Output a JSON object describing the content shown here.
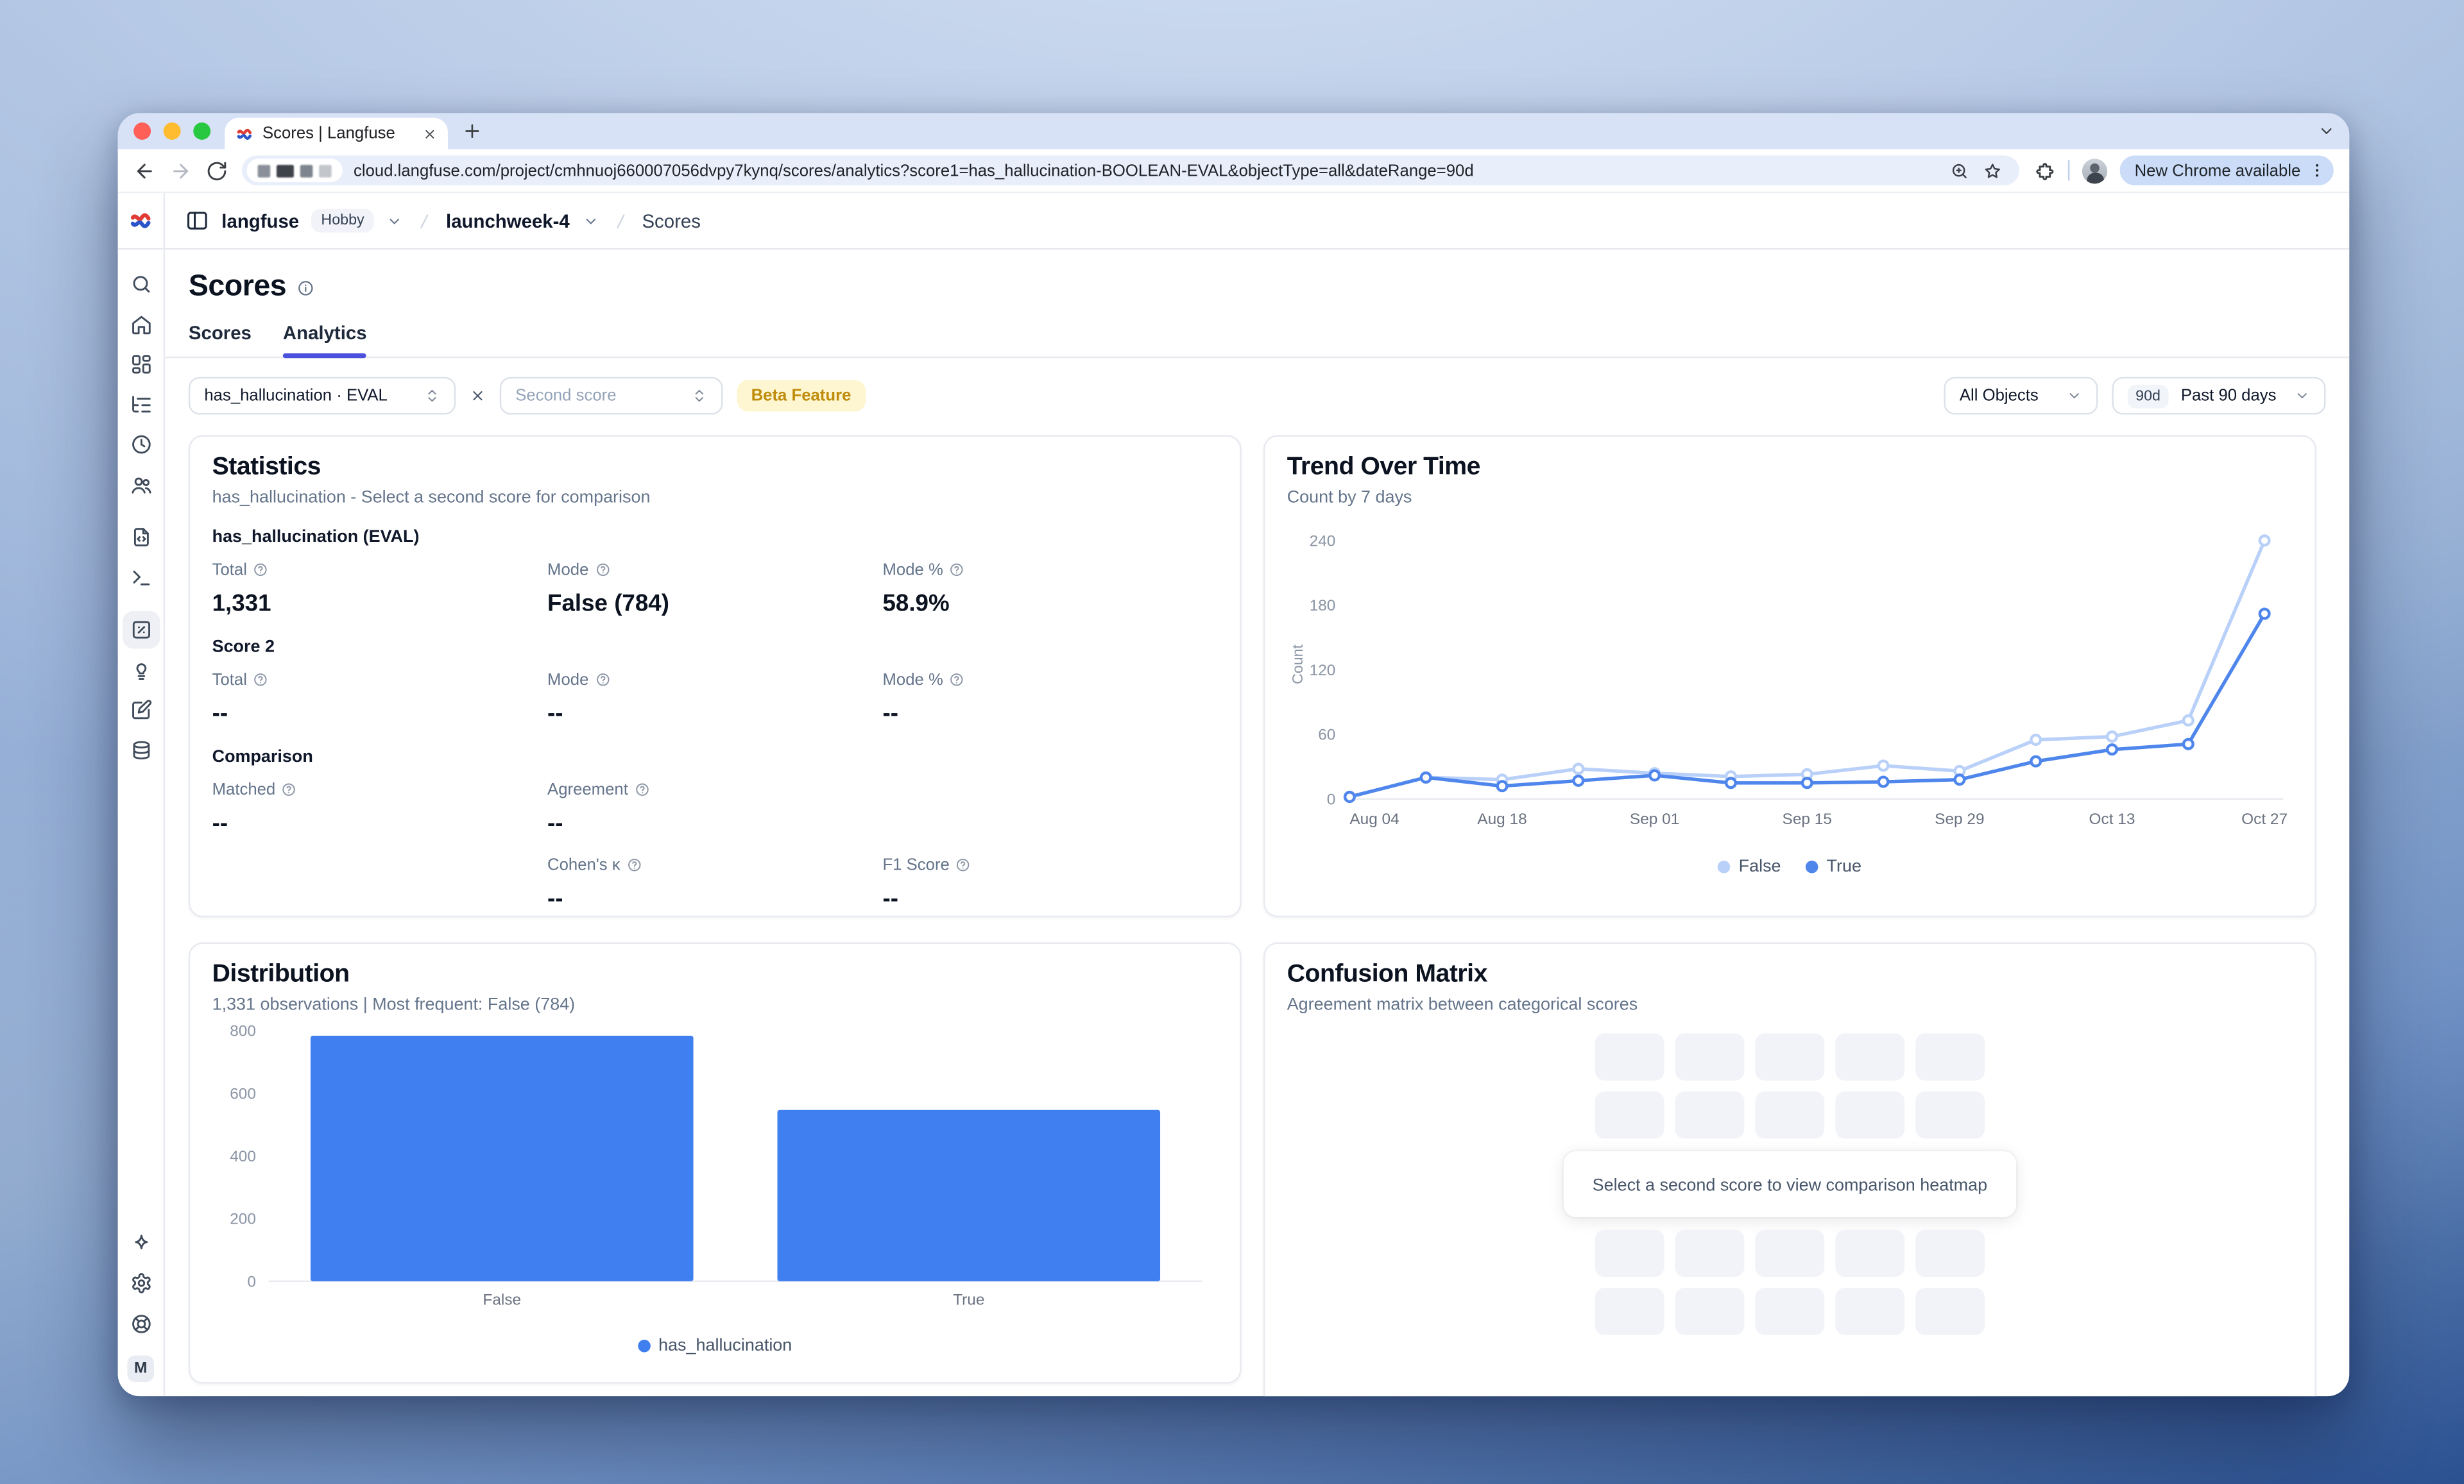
{
  "browser": {
    "tab_title": "Scores | Langfuse",
    "url": "cloud.langfuse.com/project/cmhnuoj660007056dvpy7kynq/scores/analytics?score1=has_hallucination-BOOLEAN-EVAL&objectType=all&dateRange=90d",
    "update_pill": "New Chrome available"
  },
  "app_header": {
    "org": "langfuse",
    "plan_badge": "Hobby",
    "project": "launchweek-4",
    "section": "Scores"
  },
  "sidebar": {
    "icons": [
      "search",
      "home",
      "dashboards",
      "tracing",
      "sessions",
      "users",
      "prompts",
      "playground",
      "scores",
      "evaluation",
      "annotation",
      "datasets",
      "sparkles",
      "settings",
      "support"
    ],
    "active": "scores",
    "avatar_initial": "M"
  },
  "page": {
    "title": "Scores",
    "tabs": [
      {
        "label": "Scores",
        "active": false
      },
      {
        "label": "Analytics",
        "active": true
      }
    ]
  },
  "filters": {
    "score1_value": "has_hallucination · EVAL",
    "score2_placeholder": "Second score",
    "beta_badge": "Beta Feature",
    "object_filter": "All Objects",
    "date_badge": "90d",
    "date_range": "Past 90 days"
  },
  "statistics": {
    "title": "Statistics",
    "subtitle": "has_hallucination - Select a second score for comparison",
    "s1_heading": "has_hallucination (EVAL)",
    "s1": {
      "total_label": "Total",
      "total": "1,331",
      "mode_label": "Mode",
      "mode": "False (784)",
      "modepct_label": "Mode %",
      "modepct": "58.9%"
    },
    "s2_heading": "Score 2",
    "s2": {
      "total_label": "Total",
      "total": "--",
      "mode_label": "Mode",
      "mode": "--",
      "modepct_label": "Mode %",
      "modepct": "--"
    },
    "cmp_heading": "Comparison",
    "cmp": {
      "matched_label": "Matched",
      "matched": "--",
      "agreement_label": "Agreement",
      "agreement": "--",
      "kappa_label": "Cohen's κ",
      "kappa": "--",
      "f1_label": "F1 Score",
      "f1": "--"
    }
  },
  "trend_card": {
    "title": "Trend Over Time",
    "subtitle": "Count by 7 days"
  },
  "distribution_card": {
    "title": "Distribution",
    "subtitle": "1,331 observations | Most frequent: False (784)"
  },
  "confusion_card": {
    "title": "Confusion Matrix",
    "subtitle": "Agreement matrix between categorical scores",
    "placeholder": "Select a second score to view comparison heatmap",
    "grid": {
      "rows": 4,
      "cols": 5
    }
  },
  "chart_data": [
    {
      "id": "trend",
      "type": "line",
      "title": "Trend Over Time",
      "subtitle": "Count by 7 days",
      "ylabel": "Count",
      "x": [
        "Aug 04",
        "Aug 11",
        "Aug 18",
        "Aug 25",
        "Sep 01",
        "Sep 08",
        "Sep 15",
        "Sep 22",
        "Sep 29",
        "Oct 06",
        "Oct 13",
        "Oct 20",
        "Oct 27"
      ],
      "x_tick_indices": [
        0,
        2,
        4,
        6,
        8,
        10,
        12
      ],
      "yticks": [
        0,
        60,
        120,
        180,
        240
      ],
      "ylim": [
        0,
        250
      ],
      "grid": false,
      "legend_position": "bottom",
      "series": [
        {
          "name": "False",
          "color": "#b9d0f8",
          "values": [
            2,
            20,
            18,
            28,
            24,
            21,
            23,
            31,
            26,
            55,
            58,
            73,
            240
          ]
        },
        {
          "name": "True",
          "color": "#4f86ec",
          "values": [
            2,
            20,
            12,
            17,
            22,
            15,
            15,
            16,
            18,
            35,
            46,
            51,
            172
          ]
        }
      ]
    },
    {
      "id": "distribution",
      "type": "bar",
      "title": "Distribution",
      "categories": [
        "False",
        "True"
      ],
      "values": [
        784,
        547
      ],
      "bar_color": "#3f7ff0",
      "yticks": [
        0,
        200,
        400,
        600,
        800
      ],
      "ylim": [
        0,
        800
      ],
      "grid": false,
      "legend_position": "bottom",
      "series_name": "has_hallucination"
    }
  ]
}
